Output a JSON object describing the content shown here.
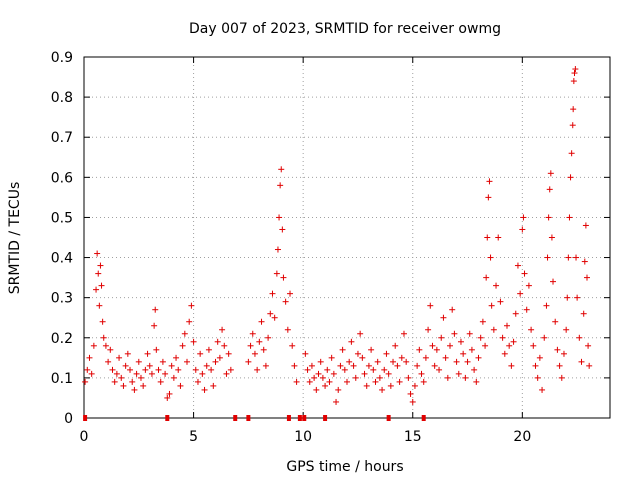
{
  "chart_data": {
    "type": "scatter",
    "title": "Day 007 of 2023, SRMTID for receiver owmg",
    "xlabel": "GPS time / hours",
    "ylabel": "SRMTID / TECUs",
    "xlim": [
      0,
      24
    ],
    "ylim": [
      0,
      0.9
    ],
    "xticks": [
      0,
      5,
      10,
      15,
      20
    ],
    "xtick_labels": [
      "0",
      "5",
      "10",
      "15",
      "20"
    ],
    "yticks": [
      0,
      0.1,
      0.2,
      0.3,
      0.4,
      0.5,
      0.6,
      0.7,
      0.8,
      0.9
    ],
    "ytick_labels": [
      "0",
      "0.1",
      "0.2",
      "0.3",
      "0.4",
      "0.5",
      "0.6",
      "0.7",
      "0.8",
      "0.9"
    ],
    "grid": true,
    "marker": "+",
    "color": "#e00000",
    "series": [
      {
        "name": "SRMTID",
        "points": [
          [
            0.05,
            0.09
          ],
          [
            0.15,
            0.12
          ],
          [
            0.25,
            0.15
          ],
          [
            0.35,
            0.11
          ],
          [
            0.45,
            0.18
          ],
          [
            0.55,
            0.32
          ],
          [
            0.6,
            0.41
          ],
          [
            0.65,
            0.36
          ],
          [
            0.7,
            0.28
          ],
          [
            0.75,
            0.38
          ],
          [
            0.8,
            0.33
          ],
          [
            0.85,
            0.24
          ],
          [
            0.9,
            0.2
          ],
          [
            1.0,
            0.18
          ],
          [
            1.1,
            0.14
          ],
          [
            1.2,
            0.17
          ],
          [
            1.3,
            0.12
          ],
          [
            1.4,
            0.09
          ],
          [
            1.5,
            0.11
          ],
          [
            1.6,
            0.15
          ],
          [
            1.7,
            0.1
          ],
          [
            1.8,
            0.08
          ],
          [
            1.9,
            0.13
          ],
          [
            2.0,
            0.16
          ],
          [
            2.1,
            0.12
          ],
          [
            2.2,
            0.09
          ],
          [
            2.3,
            0.07
          ],
          [
            2.4,
            0.11
          ],
          [
            2.5,
            0.14
          ],
          [
            2.6,
            0.1
          ],
          [
            2.7,
            0.08
          ],
          [
            2.8,
            0.12
          ],
          [
            2.9,
            0.16
          ],
          [
            3.0,
            0.13
          ],
          [
            3.1,
            0.11
          ],
          [
            3.2,
            0.23
          ],
          [
            3.25,
            0.27
          ],
          [
            3.3,
            0.17
          ],
          [
            3.4,
            0.12
          ],
          [
            3.5,
            0.09
          ],
          [
            3.6,
            0.14
          ],
          [
            3.7,
            0.11
          ],
          [
            3.8,
            0.05
          ],
          [
            3.9,
            0.06
          ],
          [
            4.0,
            0.13
          ],
          [
            4.1,
            0.1
          ],
          [
            4.2,
            0.15
          ],
          [
            4.3,
            0.12
          ],
          [
            4.4,
            0.08
          ],
          [
            4.5,
            0.18
          ],
          [
            4.6,
            0.21
          ],
          [
            4.7,
            0.14
          ],
          [
            4.8,
            0.24
          ],
          [
            4.9,
            0.28
          ],
          [
            5.0,
            0.19
          ],
          [
            5.1,
            0.12
          ],
          [
            5.2,
            0.09
          ],
          [
            5.3,
            0.16
          ],
          [
            5.4,
            0.11
          ],
          [
            5.5,
            0.07
          ],
          [
            5.6,
            0.13
          ],
          [
            5.7,
            0.17
          ],
          [
            5.8,
            0.12
          ],
          [
            5.9,
            0.08
          ],
          [
            6.0,
            0.14
          ],
          [
            6.1,
            0.19
          ],
          [
            6.2,
            0.15
          ],
          [
            6.3,
            0.22
          ],
          [
            6.4,
            0.18
          ],
          [
            6.5,
            0.11
          ],
          [
            6.6,
            0.16
          ],
          [
            6.7,
            0.12
          ],
          [
            7.5,
            0.14
          ],
          [
            7.6,
            0.18
          ],
          [
            7.7,
            0.21
          ],
          [
            7.8,
            0.16
          ],
          [
            7.9,
            0.12
          ],
          [
            8.0,
            0.19
          ],
          [
            8.1,
            0.24
          ],
          [
            8.2,
            0.17
          ],
          [
            8.3,
            0.13
          ],
          [
            8.4,
            0.2
          ],
          [
            8.5,
            0.26
          ],
          [
            8.6,
            0.31
          ],
          [
            8.7,
            0.25
          ],
          [
            8.8,
            0.36
          ],
          [
            8.85,
            0.42
          ],
          [
            8.9,
            0.5
          ],
          [
            8.95,
            0.58
          ],
          [
            9.0,
            0.62
          ],
          [
            9.05,
            0.47
          ],
          [
            9.1,
            0.35
          ],
          [
            9.2,
            0.29
          ],
          [
            9.3,
            0.22
          ],
          [
            9.4,
            0.31
          ],
          [
            9.5,
            0.18
          ],
          [
            9.6,
            0.13
          ],
          [
            9.7,
            0.09
          ],
          [
            10.1,
            0.16
          ],
          [
            10.2,
            0.12
          ],
          [
            10.3,
            0.09
          ],
          [
            10.4,
            0.13
          ],
          [
            10.5,
            0.1
          ],
          [
            10.6,
            0.07
          ],
          [
            10.7,
            0.11
          ],
          [
            10.8,
            0.14
          ],
          [
            10.9,
            0.1
          ],
          [
            11.0,
            0.08
          ],
          [
            11.1,
            0.12
          ],
          [
            11.2,
            0.09
          ],
          [
            11.3,
            0.15
          ],
          [
            11.4,
            0.11
          ],
          [
            11.5,
            0.04
          ],
          [
            11.6,
            0.07
          ],
          [
            11.7,
            0.13
          ],
          [
            11.8,
            0.17
          ],
          [
            11.9,
            0.12
          ],
          [
            12.0,
            0.09
          ],
          [
            12.1,
            0.14
          ],
          [
            12.2,
            0.19
          ],
          [
            12.3,
            0.13
          ],
          [
            12.4,
            0.1
          ],
          [
            12.5,
            0.16
          ],
          [
            12.6,
            0.21
          ],
          [
            12.7,
            0.15
          ],
          [
            12.8,
            0.11
          ],
          [
            12.9,
            0.08
          ],
          [
            13.0,
            0.13
          ],
          [
            13.1,
            0.17
          ],
          [
            13.2,
            0.12
          ],
          [
            13.3,
            0.09
          ],
          [
            13.4,
            0.14
          ],
          [
            13.5,
            0.1
          ],
          [
            13.6,
            0.07
          ],
          [
            13.7,
            0.12
          ],
          [
            13.8,
            0.16
          ],
          [
            13.9,
            0.11
          ],
          [
            14.0,
            0.08
          ],
          [
            14.1,
            0.14
          ],
          [
            14.2,
            0.18
          ],
          [
            14.3,
            0.13
          ],
          [
            14.4,
            0.09
          ],
          [
            14.5,
            0.15
          ],
          [
            14.6,
            0.21
          ],
          [
            14.7,
            0.14
          ],
          [
            14.8,
            0.1
          ],
          [
            14.9,
            0.06
          ],
          [
            15.0,
            0.04
          ],
          [
            15.1,
            0.08
          ],
          [
            15.2,
            0.13
          ],
          [
            15.3,
            0.17
          ],
          [
            15.4,
            0.11
          ],
          [
            15.5,
            0.09
          ],
          [
            15.6,
            0.15
          ],
          [
            15.7,
            0.22
          ],
          [
            15.8,
            0.28
          ],
          [
            15.9,
            0.18
          ],
          [
            16.0,
            0.13
          ],
          [
            16.1,
            0.17
          ],
          [
            16.2,
            0.12
          ],
          [
            16.3,
            0.2
          ],
          [
            16.4,
            0.25
          ],
          [
            16.5,
            0.15
          ],
          [
            16.6,
            0.1
          ],
          [
            16.7,
            0.18
          ],
          [
            16.8,
            0.27
          ],
          [
            16.9,
            0.21
          ],
          [
            17.0,
            0.14
          ],
          [
            17.1,
            0.11
          ],
          [
            17.2,
            0.19
          ],
          [
            17.3,
            0.16
          ],
          [
            17.4,
            0.1
          ],
          [
            17.5,
            0.14
          ],
          [
            17.6,
            0.21
          ],
          [
            17.7,
            0.17
          ],
          [
            17.8,
            0.12
          ],
          [
            17.9,
            0.09
          ],
          [
            18.0,
            0.15
          ],
          [
            18.1,
            0.2
          ],
          [
            18.2,
            0.24
          ],
          [
            18.3,
            0.18
          ],
          [
            18.35,
            0.35
          ],
          [
            18.4,
            0.45
          ],
          [
            18.45,
            0.55
          ],
          [
            18.5,
            0.59
          ],
          [
            18.55,
            0.4
          ],
          [
            18.6,
            0.28
          ],
          [
            18.7,
            0.22
          ],
          [
            18.8,
            0.33
          ],
          [
            18.9,
            0.45
          ],
          [
            19.0,
            0.29
          ],
          [
            19.1,
            0.2
          ],
          [
            19.2,
            0.16
          ],
          [
            19.3,
            0.23
          ],
          [
            19.4,
            0.18
          ],
          [
            19.5,
            0.13
          ],
          [
            19.6,
            0.19
          ],
          [
            19.7,
            0.26
          ],
          [
            19.8,
            0.38
          ],
          [
            19.9,
            0.31
          ],
          [
            20.0,
            0.47
          ],
          [
            20.05,
            0.5
          ],
          [
            20.1,
            0.36
          ],
          [
            20.2,
            0.27
          ],
          [
            20.3,
            0.33
          ],
          [
            20.4,
            0.22
          ],
          [
            20.5,
            0.18
          ],
          [
            20.6,
            0.13
          ],
          [
            20.7,
            0.1
          ],
          [
            20.8,
            0.15
          ],
          [
            20.9,
            0.07
          ],
          [
            21.0,
            0.2
          ],
          [
            21.1,
            0.28
          ],
          [
            21.15,
            0.4
          ],
          [
            21.2,
            0.5
          ],
          [
            21.25,
            0.57
          ],
          [
            21.3,
            0.61
          ],
          [
            21.35,
            0.45
          ],
          [
            21.4,
            0.34
          ],
          [
            21.5,
            0.24
          ],
          [
            21.6,
            0.17
          ],
          [
            21.7,
            0.13
          ],
          [
            21.8,
            0.1
          ],
          [
            21.9,
            0.16
          ],
          [
            22.0,
            0.22
          ],
          [
            22.05,
            0.3
          ],
          [
            22.1,
            0.4
          ],
          [
            22.15,
            0.5
          ],
          [
            22.2,
            0.6
          ],
          [
            22.25,
            0.66
          ],
          [
            22.3,
            0.73
          ],
          [
            22.32,
            0.77
          ],
          [
            22.35,
            0.84
          ],
          [
            22.38,
            0.86
          ],
          [
            22.42,
            0.87
          ],
          [
            22.45,
            0.4
          ],
          [
            22.5,
            0.3
          ],
          [
            22.6,
            0.2
          ],
          [
            22.7,
            0.14
          ],
          [
            22.8,
            0.26
          ],
          [
            22.85,
            0.39
          ],
          [
            22.9,
            0.48
          ],
          [
            22.95,
            0.35
          ],
          [
            23.0,
            0.18
          ],
          [
            23.05,
            0.13
          ]
        ]
      }
    ],
    "gap_markers_x": [
      0.05,
      3.8,
      6.9,
      7.5,
      9.35,
      9.85,
      10.05,
      11.0,
      13.9,
      15.5
    ]
  }
}
